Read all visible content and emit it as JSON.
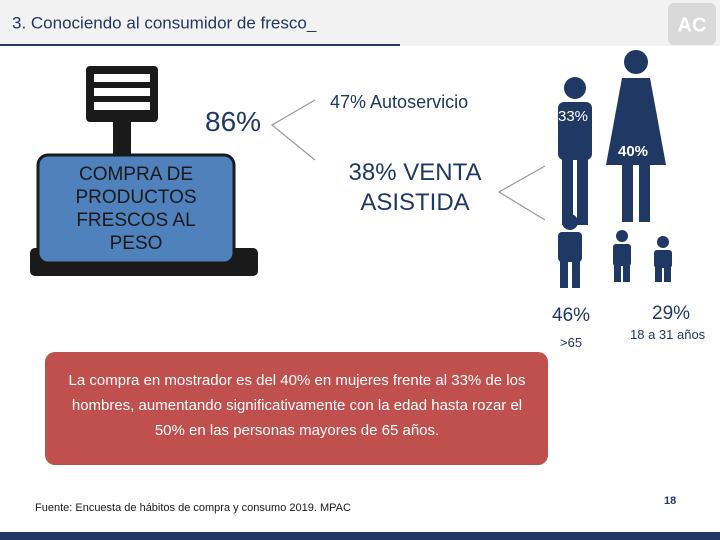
{
  "header": {
    "title": "3. Conociendo al consumidor de fresco_",
    "logo": "AC"
  },
  "scale": {
    "percent": "86%",
    "label": "COMPRA DE PRODUCTOS FRESCOS AL PESO"
  },
  "channels": {
    "self_service": "47% Autoservicio",
    "assisted": "38% VENTA ASISTIDA"
  },
  "gender": {
    "men": "33%",
    "women": "40%"
  },
  "age": {
    "older": {
      "percent": "46%",
      "label": ">65"
    },
    "young": {
      "percent": "29%",
      "label": "18 a 31 años"
    }
  },
  "note": "La compra en mostrador es del 40% en mujeres frente al 33% de los hombres, aumentando significativamente con la edad hasta rozar el 50% en las personas mayores de 65 años.",
  "source": "Fuente: Encuesta de hábitos de compra y consumo 2019. MPAC",
  "page_number": "18"
}
